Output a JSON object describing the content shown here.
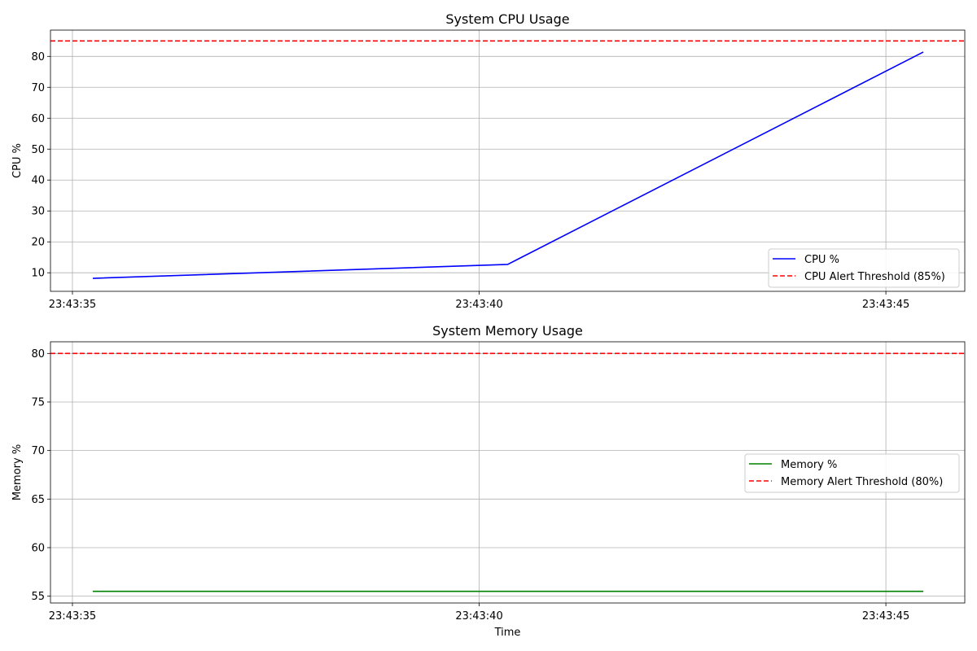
{
  "chart_data": [
    {
      "type": "line",
      "title": "System CPU Usage",
      "xlabel": "",
      "ylabel": "CPU %",
      "x_ticks": [
        "23:43:35",
        "23:43:40",
        "23:43:45"
      ],
      "x_tick_seconds": [
        35,
        40,
        45
      ],
      "xlim_seconds": [
        34.73,
        45.97
      ],
      "ylim": [
        4.0,
        88.5
      ],
      "y_ticks": [
        10,
        20,
        30,
        40,
        50,
        60,
        70,
        80
      ],
      "grid": true,
      "legend_position": "lower right",
      "series": [
        {
          "name": "CPU %",
          "color": "#0000ff",
          "style": "solid",
          "x_seconds": [
            35.25,
            40.35,
            45.46
          ],
          "values": [
            8.2,
            12.7,
            81.4
          ]
        },
        {
          "name": "CPU Alert Threshold (85%)",
          "color": "#ff0000",
          "style": "dashed",
          "hline": 85
        }
      ]
    },
    {
      "type": "line",
      "title": "System Memory Usage",
      "xlabel": "Time",
      "ylabel": "Memory %",
      "x_ticks": [
        "23:43:35",
        "23:43:40",
        "23:43:45"
      ],
      "x_tick_seconds": [
        35,
        40,
        45
      ],
      "xlim_seconds": [
        34.73,
        45.97
      ],
      "ylim": [
        54.3,
        81.2
      ],
      "y_ticks": [
        55,
        60,
        65,
        70,
        75,
        80
      ],
      "grid": true,
      "legend_position": "center right",
      "series": [
        {
          "name": "Memory %",
          "color": "#008000",
          "style": "solid",
          "x_seconds": [
            35.25,
            40.35,
            45.46
          ],
          "values": [
            55.5,
            55.5,
            55.5
          ]
        },
        {
          "name": "Memory Alert Threshold (80%)",
          "color": "#ff0000",
          "style": "dashed",
          "hline": 80
        }
      ]
    }
  ]
}
